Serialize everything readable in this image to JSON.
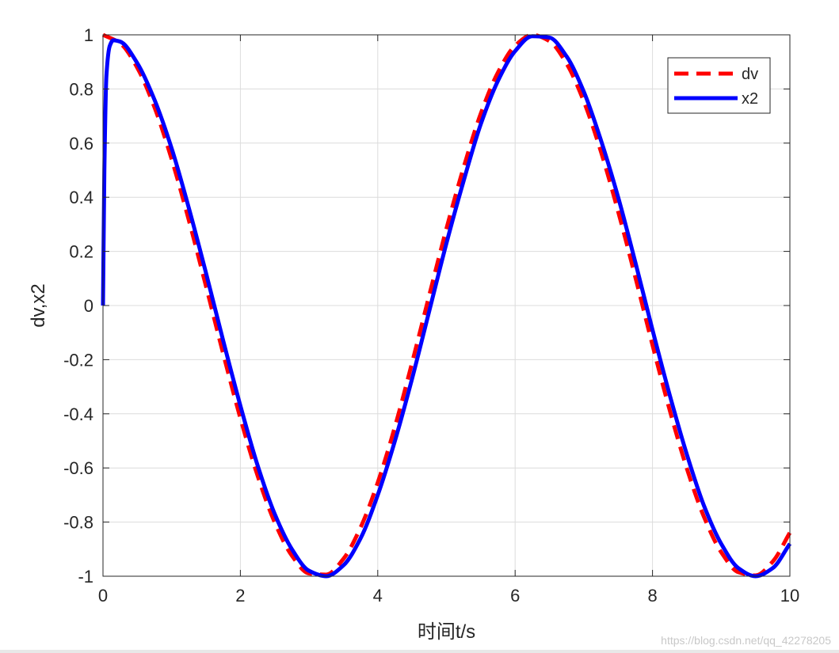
{
  "chart_data": {
    "type": "line",
    "title": "",
    "xlabel": "时间t/s",
    "ylabel": "dv,x2",
    "xlim": [
      0,
      10
    ],
    "ylim": [
      -1,
      1
    ],
    "xticks": [
      0,
      2,
      4,
      6,
      8,
      10
    ],
    "yticks": [
      -1,
      -0.8,
      -0.6,
      -0.4,
      -0.2,
      0,
      0.2,
      0.4,
      0.6,
      0.8,
      1
    ],
    "grid": true,
    "legend_position": "top-right",
    "series": [
      {
        "name": "dv",
        "color": "#ff0000",
        "style": "dashed",
        "x": [
          0,
          0.25,
          0.5,
          0.75,
          1,
          1.25,
          1.5,
          1.75,
          2,
          2.25,
          2.5,
          2.75,
          3,
          3.25,
          3.5,
          3.75,
          4,
          4.25,
          4.5,
          4.75,
          5,
          5.25,
          5.5,
          5.75,
          6,
          6.25,
          6.5,
          6.75,
          7,
          7.25,
          7.5,
          7.75,
          8,
          8.25,
          8.5,
          8.75,
          9,
          9.25,
          9.5,
          9.75,
          10
        ],
        "y": [
          1,
          0.969,
          0.878,
          0.732,
          0.54,
          0.315,
          0.071,
          -0.178,
          -0.416,
          -0.628,
          -0.801,
          -0.924,
          -0.99,
          -0.994,
          -0.936,
          -0.82,
          -0.654,
          -0.448,
          -0.211,
          0.038,
          0.284,
          0.51,
          0.709,
          0.861,
          0.96,
          1,
          0.977,
          0.893,
          0.754,
          0.568,
          0.347,
          0.105,
          -0.146,
          -0.386,
          -0.602,
          -0.781,
          -0.911,
          -0.985,
          -0.997,
          -0.946,
          -0.839
        ]
      },
      {
        "name": "x2",
        "color": "#0000ff",
        "style": "solid",
        "x": [
          0,
          0.02,
          0.05,
          0.1,
          0.15,
          0.25,
          0.5,
          0.75,
          1,
          1.25,
          1.5,
          1.75,
          2,
          2.25,
          2.5,
          2.75,
          3,
          3.25,
          3.5,
          3.75,
          4,
          4.25,
          4.5,
          4.75,
          5,
          5.25,
          5.5,
          5.75,
          6,
          6.25,
          6.5,
          6.75,
          7,
          7.25,
          7.5,
          7.75,
          8,
          8.25,
          8.5,
          8.75,
          9,
          9.25,
          9.5,
          9.75,
          10
        ],
        "y": [
          0,
          0.5,
          0.85,
          0.96,
          0.98,
          0.975,
          0.895,
          0.76,
          0.58,
          0.36,
          0.12,
          -0.13,
          -0.37,
          -0.59,
          -0.77,
          -0.9,
          -0.98,
          -1,
          -0.96,
          -0.86,
          -0.7,
          -0.5,
          -0.27,
          -0.02,
          0.23,
          0.46,
          0.67,
          0.83,
          0.94,
          0.995,
          0.99,
          0.92,
          0.79,
          0.61,
          0.4,
          0.16,
          -0.09,
          -0.33,
          -0.55,
          -0.74,
          -0.88,
          -0.97,
          -1,
          -0.97,
          -0.88
        ]
      }
    ]
  },
  "watermark": "https://blog.csdn.net/qq_42278205"
}
